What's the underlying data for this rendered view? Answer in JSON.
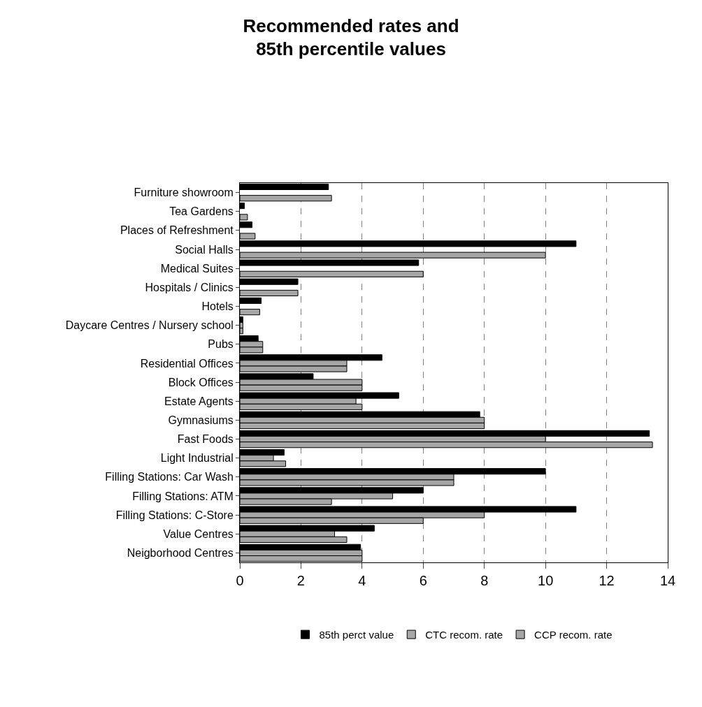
{
  "chart_data": {
    "type": "bar",
    "orientation": "horizontal",
    "title": "Recommended rates and\n85th percentile values",
    "categories": [
      "Furniture showroom",
      "Tea Gardens",
      "Places of Refreshment",
      "Social Halls",
      "Medical Suites",
      "Hospitals / Clinics",
      "Hotels",
      "Daycare Centres / Nursery school",
      "Pubs",
      "Residential Offices",
      "Block Offices",
      "Estate Agents",
      "Gymnasiums",
      "Fast Foods",
      "Light Industrial",
      "Filling Stations: Car Wash",
      "Filling Stations: ATM",
      "Filling Stations: C-Store",
      "Value Centres",
      "Neigborhood Centres"
    ],
    "series": [
      {
        "name": "85th perct value",
        "color": "#000000",
        "values": [
          2.9,
          0.15,
          0.4,
          11,
          5.85,
          1.9,
          0.7,
          0.1,
          0.6,
          4.65,
          2.4,
          5.2,
          7.85,
          13.4,
          1.45,
          10,
          6,
          11,
          4.4,
          3.95
        ]
      },
      {
        "name": "CTC recom. rate",
        "color": "#a6a6a6",
        "values": [
          null,
          null,
          null,
          null,
          null,
          null,
          null,
          0.1,
          0.75,
          3.5,
          4,
          3.8,
          8,
          10,
          1.1,
          7,
          5,
          8,
          3.1,
          4
        ]
      },
      {
        "name": "CCP recom. rate",
        "color": "#a6a6a6",
        "values": [
          3,
          0.25,
          0.5,
          10,
          6,
          1.9,
          0.65,
          0.1,
          0.75,
          3.5,
          4,
          4,
          8,
          13.5,
          1.5,
          7,
          3,
          6,
          3.5,
          4
        ]
      }
    ],
    "xlim": [
      0,
      14
    ],
    "xticks": [
      0,
      2,
      4,
      6,
      8,
      10,
      12,
      14
    ],
    "grid": "x",
    "legend": "bottom"
  }
}
